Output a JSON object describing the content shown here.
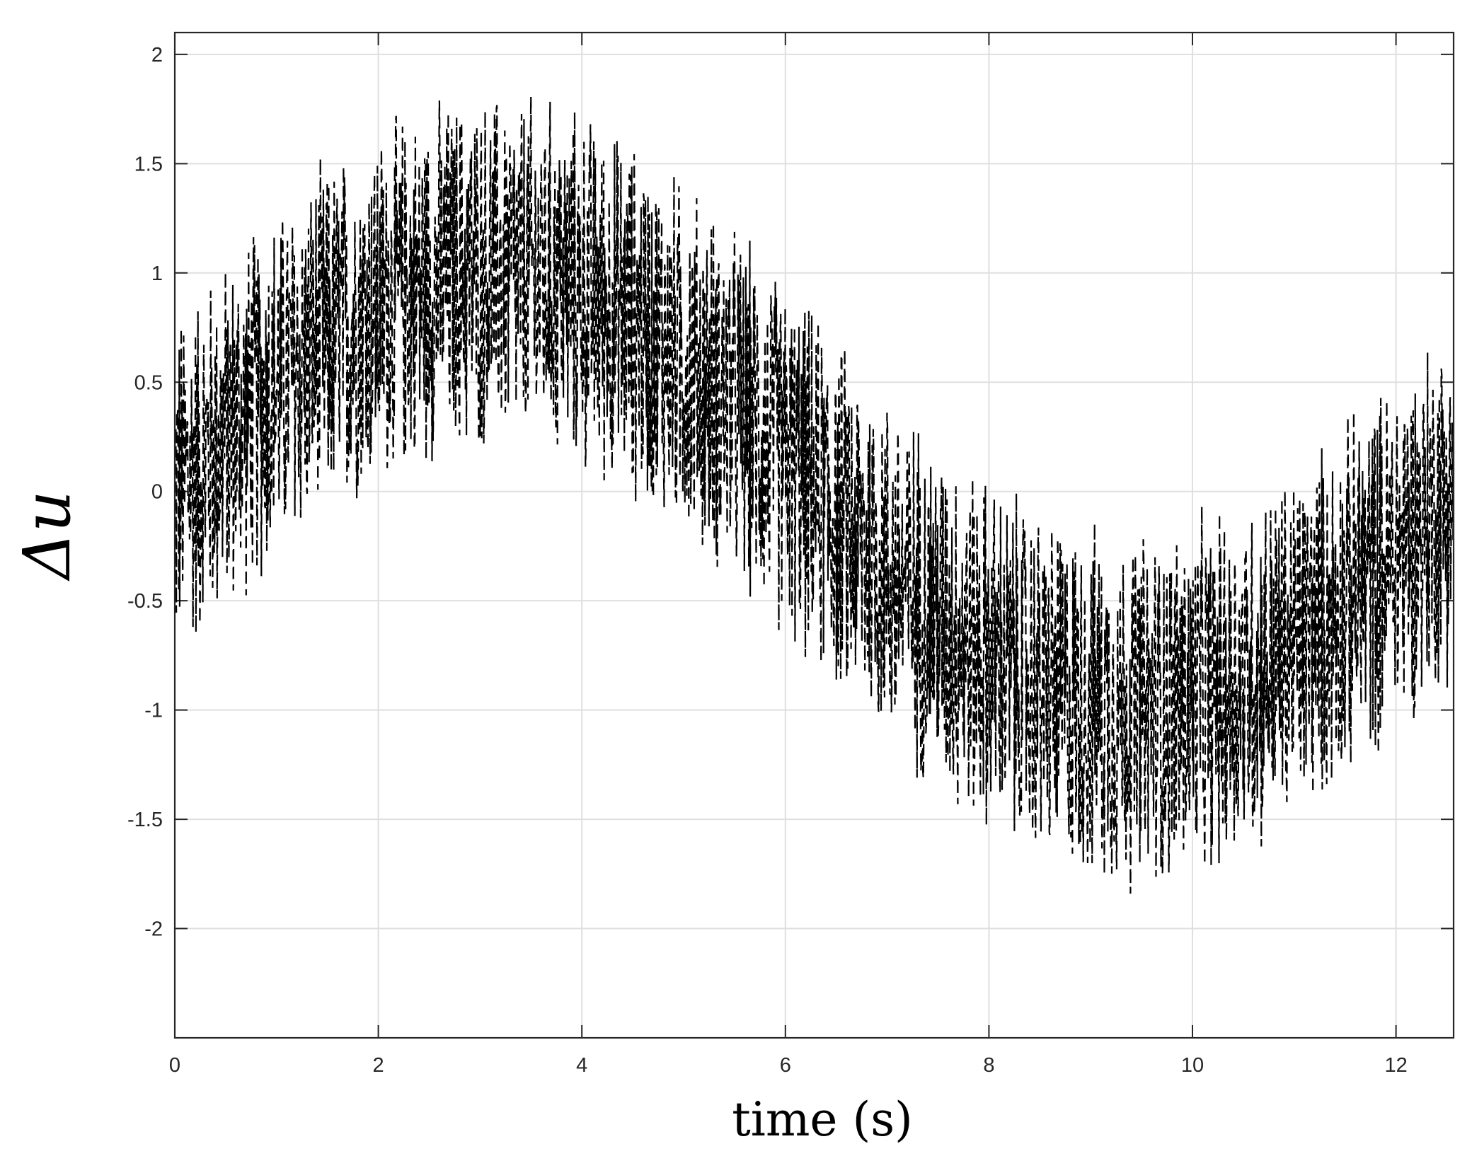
{
  "chart_data": {
    "type": "line",
    "title": "",
    "xlabel": "time (s)",
    "ylabel": "Δu",
    "xlim": [
      0,
      12.566
    ],
    "ylim": [
      -2.5,
      2.1
    ],
    "grid": true,
    "legend": "none",
    "x_ticks": [
      0,
      2,
      4,
      6,
      8,
      10,
      12
    ],
    "x_tick_labels": [
      "0",
      "2",
      "4",
      "6",
      "8",
      "10",
      "12"
    ],
    "y_ticks": [
      2,
      1.5,
      1,
      0.5,
      0,
      -0.5,
      -1,
      -1.5,
      -2
    ],
    "y_tick_labels": [
      "2",
      "1.5",
      "1",
      "0.5",
      "0",
      "-0.5",
      "-1",
      "-1.5",
      "-2"
    ],
    "series": [
      {
        "name": "",
        "style": "dashed",
        "color": "#000000",
        "description_of_signal": "noisy sine, amplitude ~1, period ~12.57 s, noise +/-1",
        "x": [
          0,
          0.5,
          1,
          1.5,
          2,
          2.5,
          3,
          3.5,
          4,
          4.5,
          5,
          5.5,
          6,
          6.5,
          7,
          7.5,
          8,
          8.5,
          9,
          9.5,
          10,
          10.5,
          11,
          11.5,
          12,
          12.5
        ],
        "center": [
          0,
          0.25,
          0.48,
          0.68,
          0.84,
          0.95,
          1.0,
          0.98,
          0.91,
          0.78,
          0.6,
          0.38,
          0.14,
          -0.1,
          -0.35,
          -0.57,
          -0.76,
          -0.9,
          -0.98,
          -1.0,
          -0.96,
          -0.86,
          -0.7,
          -0.5,
          -0.28,
          -0.03
        ],
        "min": [
          -0.95,
          -0.7,
          -0.55,
          -0.4,
          -0.1,
          -0.05,
          0.1,
          0.15,
          -0.1,
          -0.15,
          -0.35,
          -0.55,
          -0.65,
          -0.95,
          -1.35,
          -1.45,
          -1.75,
          -1.85,
          -1.97,
          -1.95,
          -1.9,
          -1.8,
          -1.7,
          -1.45,
          -1.25,
          -1.1
        ],
        "max": [
          1.0,
          1.2,
          1.35,
          1.7,
          1.8,
          1.9,
          1.95,
          1.95,
          1.85,
          1.7,
          1.45,
          1.2,
          1.0,
          0.75,
          0.5,
          0.3,
          0.15,
          -0.1,
          -0.1,
          -0.05,
          0.0,
          0.05,
          0.15,
          0.35,
          0.6,
          0.8
        ]
      }
    ]
  }
}
